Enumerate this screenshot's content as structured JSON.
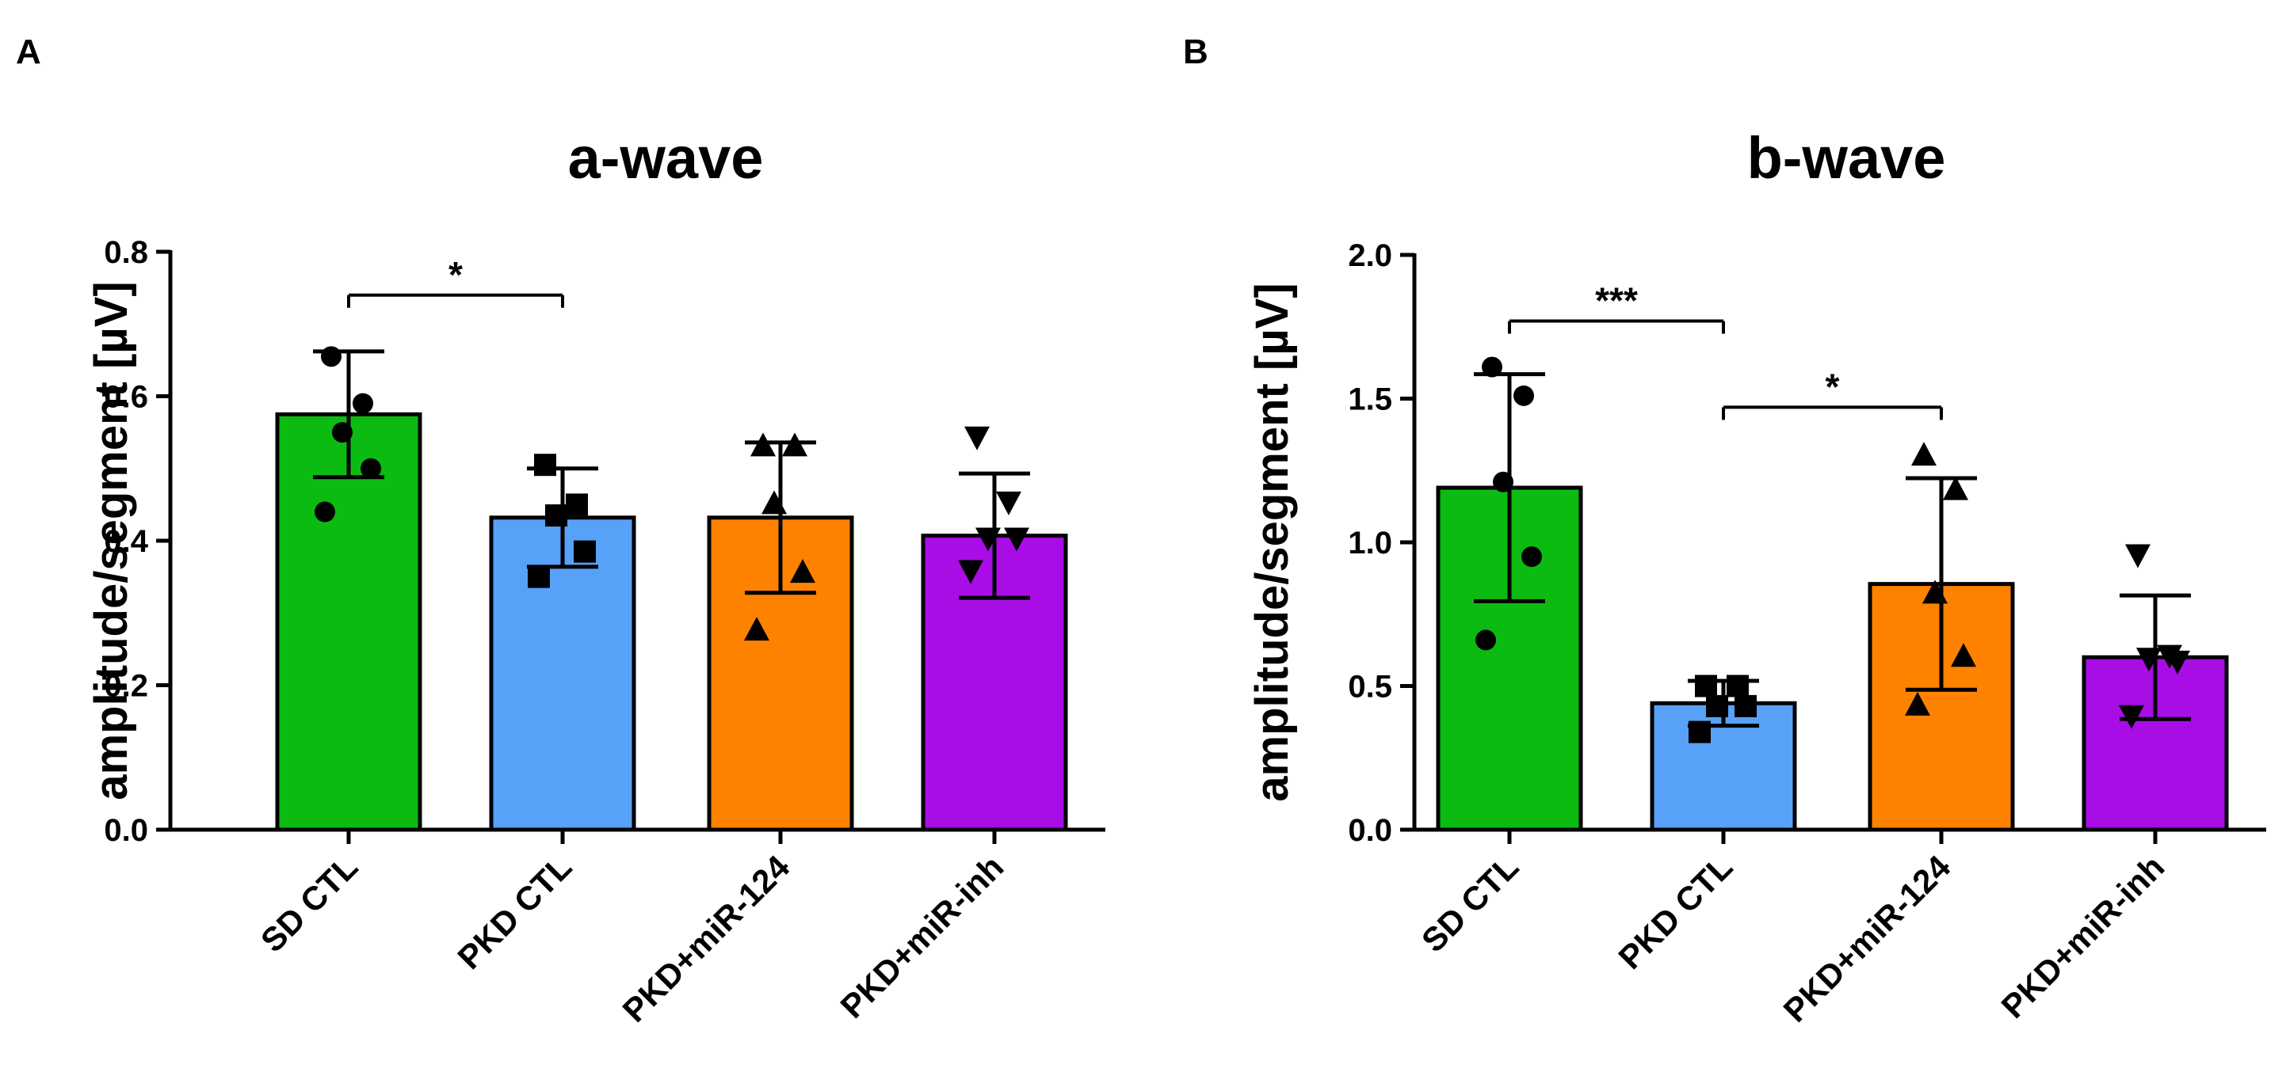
{
  "colors": {
    "SD CTL": "#0cbb12",
    "PKD CTL": "#57a1f8",
    "PKD+miR-124": "#fe8200",
    "PKD+miR-inh": "#a80de6"
  },
  "chart_data": [
    {
      "panel": "A",
      "type": "bar",
      "title": "a-wave",
      "ylabel": "amplitude/segment [µV]",
      "ylim": [
        0,
        0.8
      ],
      "yticks": [
        "0.0",
        "0.2",
        "0.4",
        "0.6",
        "0.8"
      ],
      "categories": [
        "SD CTL",
        "PKD CTL",
        "PKD+miR-124",
        "PKD+miR-inh"
      ],
      "values": [
        0.575,
        0.432,
        0.432,
        0.407
      ],
      "sd": [
        0.087,
        0.068,
        0.104,
        0.086
      ],
      "points": [
        [
          0.655,
          0.59,
          0.55,
          0.5,
          0.44
        ],
        [
          0.505,
          0.45,
          0.435,
          0.385,
          0.35
        ],
        [
          0.53,
          0.53,
          0.45,
          0.355,
          0.275
        ],
        [
          0.545,
          0.455,
          0.405,
          0.405,
          0.36
        ]
      ],
      "markers": [
        "circle",
        "square",
        "triangle-up",
        "triangle-down"
      ],
      "significance": [
        {
          "from": 0,
          "to": 1,
          "label": "*"
        }
      ]
    },
    {
      "panel": "B",
      "type": "bar",
      "title": "b-wave",
      "ylabel": "amplitude/segment [µV]",
      "ylim": [
        0,
        2.0
      ],
      "yticks": [
        "0.0",
        "0.5",
        "1.0",
        "1.5",
        "2.0"
      ],
      "categories": [
        "SD CTL",
        "PKD CTL",
        "PKD+miR-124",
        "PKD+miR-inh"
      ],
      "values": [
        1.19,
        0.44,
        0.855,
        0.6
      ],
      "sd": [
        0.395,
        0.078,
        0.368,
        0.215
      ],
      "points": [
        [
          1.61,
          1.51,
          1.21,
          0.95,
          0.66
        ],
        [
          0.5,
          0.5,
          0.43,
          0.43,
          0.34
        ],
        [
          1.3,
          1.18,
          0.82,
          0.6,
          0.43
        ],
        [
          0.96,
          0.61,
          0.6,
          0.59,
          0.4
        ]
      ],
      "markers": [
        "circle",
        "square",
        "triangle-up",
        "triangle-down"
      ],
      "significance": [
        {
          "from": 0,
          "to": 1,
          "label": "***"
        },
        {
          "from": 1,
          "to": 2,
          "label": "*"
        }
      ]
    }
  ]
}
